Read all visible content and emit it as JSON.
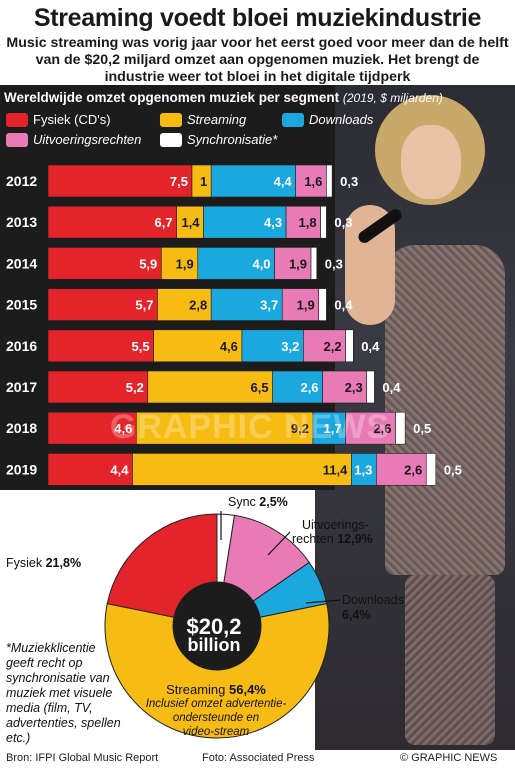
{
  "title": "Streaming voedt bloei muziekindustrie",
  "subtitle": "Music streaming was vorig jaar voor het eerst goed voor meer dan de helft van de $20,2 miljard omzet aan opgenomen muziek. Het brengt de industrie weer tot bloei in het digitale tijdperk",
  "colors": {
    "fysiek": "#e3242b",
    "streaming": "#f7bc14",
    "downloads": "#1aa8df",
    "uitvoeringsrechten": "#e87bb5",
    "sync": "#ffffff",
    "dark": "#1c1c1c"
  },
  "chart_data": [
    {
      "type": "bar",
      "orientation": "horizontal-stacked",
      "title": "Wereldwijde omzet opgenomen muziek per segment",
      "unit": "(2019, $ miljarden)",
      "categories": [
        "2012",
        "2013",
        "2014",
        "2015",
        "2016",
        "2017",
        "2018",
        "2019"
      ],
      "series": [
        {
          "name": "Fysiek (CD's)",
          "key": "fysiek",
          "values": [
            7.5,
            6.7,
            5.9,
            5.7,
            5.5,
            5.2,
            4.6,
            4.4
          ],
          "labels": [
            "7,5",
            "6,7",
            "5,9",
            "5,7",
            "5,5",
            "5,2",
            "4,6",
            "4,4"
          ]
        },
        {
          "name": "Streaming",
          "key": "streaming",
          "values": [
            1.0,
            1.4,
            1.9,
            2.8,
            4.6,
            6.5,
            9.2,
            11.4
          ],
          "labels": [
            "1",
            "1,4",
            "1,9",
            "2,8",
            "4,6",
            "6,5",
            "9,2",
            "11,4"
          ]
        },
        {
          "name": "Downloads",
          "key": "downloads",
          "values": [
            4.4,
            4.3,
            4.0,
            3.7,
            3.2,
            2.6,
            1.7,
            1.3
          ],
          "labels": [
            "4,4",
            "4,3",
            "4,0",
            "3,7",
            "3,2",
            "2,6",
            "1,7",
            "1,3"
          ]
        },
        {
          "name": "Uitvoeringsrechten",
          "key": "uitvoeringsrechten",
          "values": [
            1.6,
            1.8,
            1.9,
            1.9,
            2.2,
            2.3,
            2.6,
            2.6
          ],
          "labels": [
            "1,6",
            "1,8",
            "1,9",
            "1,9",
            "2,2",
            "2,3",
            "2,6",
            "2,6"
          ]
        },
        {
          "name": "Synchronisatie*",
          "key": "sync",
          "values": [
            0.3,
            0.3,
            0.3,
            0.4,
            0.4,
            0.4,
            0.5,
            0.5
          ],
          "labels": [
            "0,3",
            "0,3",
            "0,3",
            "0,4",
            "0,4",
            "0,4",
            "0,5",
            "0,5"
          ]
        }
      ],
      "legend": [
        "Fysiek (CD's)",
        "Streaming",
        "Downloads",
        "Uitvoeringsrechten",
        "Synchronisatie*"
      ]
    },
    {
      "type": "pie",
      "style": "donut",
      "year": "2019",
      "center_amount": "$20,2",
      "center_unit": "billion",
      "slices": [
        {
          "key": "sync",
          "name": "Sync",
          "value": 2.5,
          "label": "2,5%"
        },
        {
          "key": "uitvoeringsrechten",
          "name": "Uitvoerings-rechten",
          "value": 12.9,
          "label": "12,9%"
        },
        {
          "key": "downloads",
          "name": "Downloads",
          "value": 6.4,
          "label": "6,4%"
        },
        {
          "key": "streaming",
          "name": "Streaming",
          "value": 56.4,
          "label": "56,4%"
        },
        {
          "key": "fysiek",
          "name": "Fysiek",
          "value": 21.8,
          "label": "21,8%"
        }
      ]
    }
  ],
  "pie_labels": {
    "sync_name": "Sync",
    "sync_pct": "2,5%",
    "uitv_name_line1": "Uitvoerings-",
    "uitv_name_line2": "rechten",
    "uitv_pct": "12,9%",
    "downloads_name": "Downloads",
    "downloads_pct": "6,4%",
    "fysiek_name": "Fysiek",
    "fysiek_pct": "21,8%",
    "streaming_name": "Streaming",
    "streaming_pct": "56,4%",
    "streaming_note_1": "Inclusief omzet advertentie-",
    "streaming_note_2": "ondersteunde en",
    "streaming_note_3": "video-stream"
  },
  "note": "*Muziekklicentie geeft recht op synchronisatie van muziek met visuele media (film, TV, advertenties, spellen etc.)",
  "footer": {
    "source": "Bron: IFPI Global Music Report",
    "photo": "Foto: Associated Press",
    "credit": "© GRAPHIC NEWS"
  },
  "watermark": "GRAPHIC NEWS"
}
